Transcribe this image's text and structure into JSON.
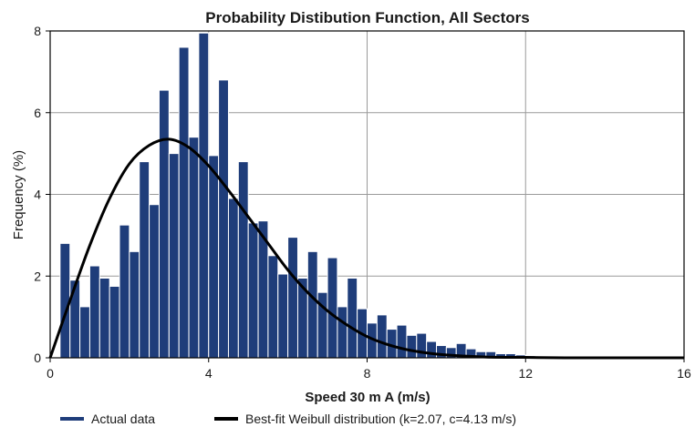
{
  "chart_data": {
    "type": "bar",
    "title": "Probability Distibution Function, All Sectors",
    "xlabel": "Speed 30 m A (m/s)",
    "ylabel": "Frequency (%)",
    "xlim": [
      0,
      16
    ],
    "ylim": [
      0,
      8
    ],
    "xticks": [
      0,
      4,
      8,
      12,
      16
    ],
    "yticks": [
      0,
      2,
      4,
      6,
      8
    ],
    "grid": true,
    "legend_position": "bottom",
    "bin_width": 0.25,
    "bin_start": 0.25,
    "series": [
      {
        "name": "Actual data",
        "kind": "histogram",
        "color": "#1f3d7a",
        "values": [
          2.8,
          1.9,
          1.25,
          2.25,
          1.95,
          1.75,
          3.25,
          2.6,
          4.8,
          3.75,
          6.55,
          5.0,
          7.6,
          5.4,
          7.95,
          4.95,
          6.8,
          3.9,
          4.8,
          3.3,
          3.35,
          2.5,
          2.05,
          2.95,
          1.95,
          2.6,
          1.6,
          2.45,
          1.25,
          1.95,
          1.2,
          0.85,
          1.05,
          0.7,
          0.8,
          0.55,
          0.6,
          0.4,
          0.3,
          0.25,
          0.35,
          0.22,
          0.15,
          0.15,
          0.1,
          0.1,
          0.07,
          0.05,
          0.04,
          0.03,
          0.02,
          0.02,
          0.01,
          0.01,
          0.01,
          0.01,
          0.0,
          0.0,
          0.0,
          0.0
        ]
      },
      {
        "name": "Best-fit Weibull distribution (k=2.07, c=4.13 m/s)",
        "kind": "line",
        "color": "#000000",
        "x": [
          0,
          0.5,
          1,
          1.5,
          2,
          2.5,
          3,
          3.5,
          4,
          4.5,
          5,
          5.5,
          6,
          6.5,
          7,
          7.5,
          8,
          8.5,
          9,
          9.5,
          10,
          11,
          12,
          13,
          14,
          15,
          16
        ],
        "values": [
          0,
          1.4,
          2.75,
          3.9,
          4.75,
          5.2,
          5.35,
          5.15,
          4.7,
          4.1,
          3.45,
          2.8,
          2.15,
          1.6,
          1.15,
          0.8,
          0.52,
          0.33,
          0.2,
          0.12,
          0.07,
          0.02,
          0.01,
          0,
          0,
          0,
          0
        ]
      }
    ]
  },
  "colors": {
    "bar_fill": "#1f3d7a",
    "bar_edge": "#ffffff",
    "line": "#000000",
    "grid": "#9a9a9a",
    "frame": "#000000"
  }
}
